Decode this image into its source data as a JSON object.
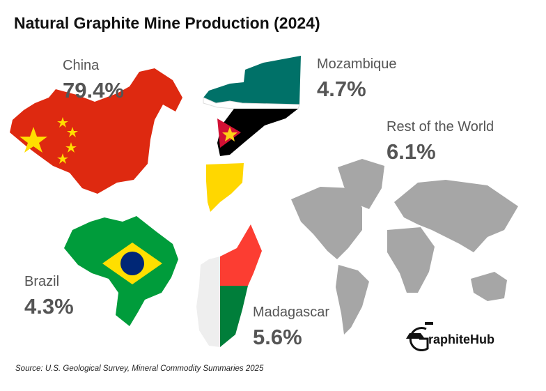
{
  "title": "Natural Graphite Mine Production (2024)",
  "source": "Source: U.S. Geological Survey, Mineral Commodity Summaries 2025",
  "logo": {
    "text": "raphiteHub",
    "icon": "graphite-g-car-plug-icon"
  },
  "colors": {
    "china_red": "#de2910",
    "china_yellow": "#ffde00",
    "moz_green": "#007168",
    "moz_yellow": "#fcd116",
    "moz_red": "#d21034",
    "moz_black": "#000000",
    "brazil_green": "#009c3b",
    "brazil_yellow": "#ffdf00",
    "brazil_blue": "#002776",
    "madagascar_red": "#fc3d32",
    "madagascar_green": "#007e3a",
    "madagascar_white": "#eeeeee",
    "world_gray": "#a6a6a6",
    "text_gray": "#555555"
  },
  "chart_data": {
    "type": "pie",
    "title": "Natural Graphite Mine Production (2024)",
    "unit": "%",
    "categories": [
      "China",
      "Mozambique",
      "Rest of the World",
      "Brazil",
      "Madagascar"
    ],
    "values": [
      79.4,
      4.7,
      6.1,
      4.3,
      5.6
    ],
    "labels": {
      "china": {
        "name": "China",
        "value": "79.4%"
      },
      "mozambique": {
        "name": "Mozambique",
        "value": "4.7%"
      },
      "rest": {
        "name": "Rest of the World",
        "value": "6.1%"
      },
      "brazil": {
        "name": "Brazil",
        "value": "4.3%"
      },
      "madagascar": {
        "name": "Madagascar",
        "value": "5.6%"
      }
    }
  }
}
